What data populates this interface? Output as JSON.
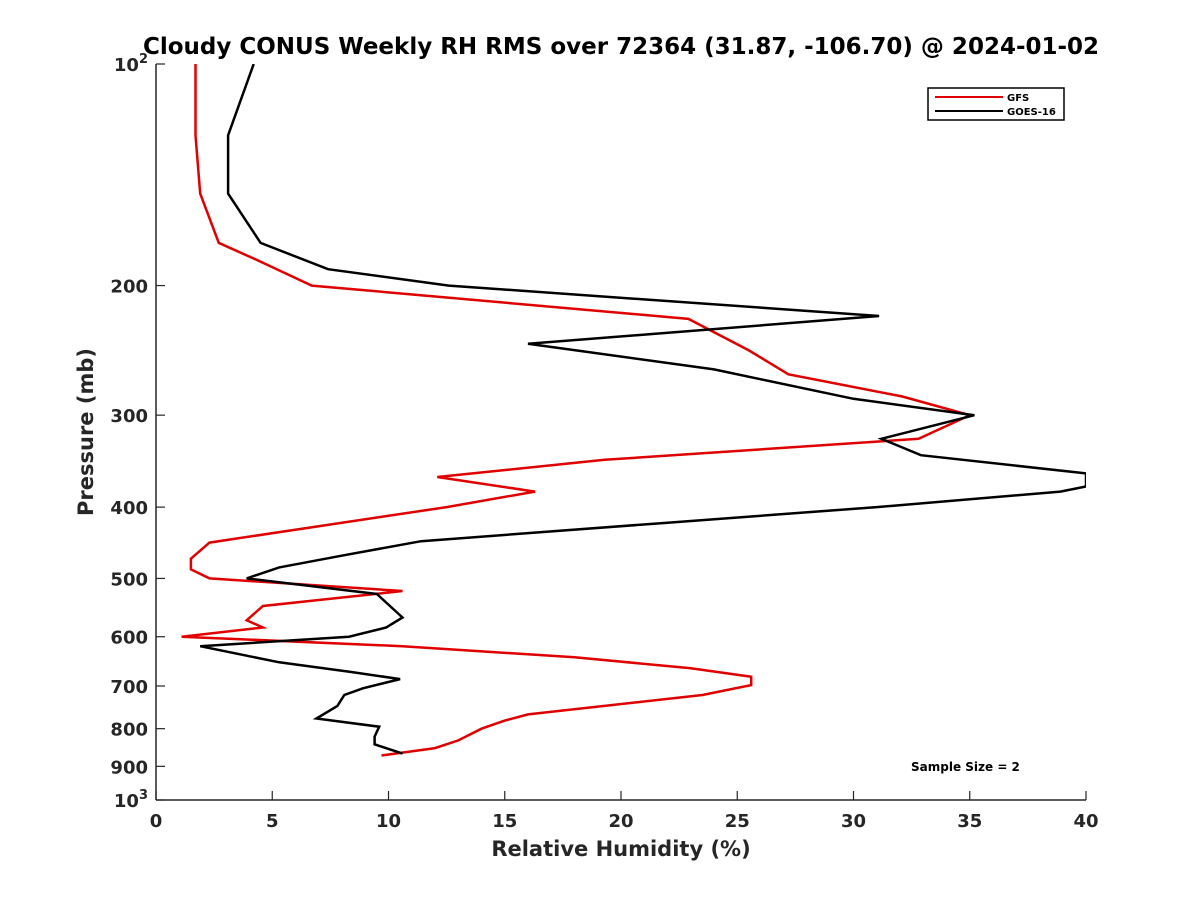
{
  "chart_data": {
    "type": "line",
    "title": "Cloudy CONUS Weekly RH RMS over 72364 (31.87, -106.70) @ 2024-01-02",
    "xlabel": "Relative Humidity (%)",
    "ylabel": "Pressure (mb)",
    "xlim": [
      0,
      40
    ],
    "ylim": [
      100,
      1000
    ],
    "y_scale": "log",
    "y_reversed": true,
    "x_ticks": [
      0,
      5,
      10,
      15,
      20,
      25,
      30,
      35,
      40
    ],
    "x_tick_labels": [
      "0",
      "5",
      "10",
      "15",
      "20",
      "25",
      "30",
      "35",
      "40"
    ],
    "y_ticks": [
      100,
      200,
      300,
      400,
      500,
      600,
      700,
      800,
      900,
      1000
    ],
    "y_tick_labels": [
      "10²",
      "200",
      "300",
      "400",
      "500",
      "600",
      "700",
      "800",
      "900",
      "10³"
    ],
    "grid": false,
    "legend_position": "top-right",
    "annotation": "Sample Size = 2",
    "series": [
      {
        "name": "GFS",
        "color": "#e00000",
        "points": [
          [
            1.7,
            100
          ],
          [
            1.7,
            125
          ],
          [
            1.9,
            150
          ],
          [
            2.7,
            175
          ],
          [
            4.4,
            185
          ],
          [
            6.7,
            200
          ],
          [
            22.9,
            222
          ],
          [
            25.5,
            245
          ],
          [
            27.2,
            264
          ],
          [
            32.1,
            283
          ],
          [
            35.0,
            300
          ],
          [
            32.8,
            323
          ],
          [
            19.3,
            345
          ],
          [
            12.1,
            364
          ],
          [
            16.3,
            381
          ],
          [
            12.5,
            400
          ],
          [
            2.3,
            447
          ],
          [
            1.5,
            470
          ],
          [
            1.5,
            486
          ],
          [
            2.3,
            500
          ],
          [
            10.6,
            520
          ],
          [
            4.6,
            545
          ],
          [
            3.9,
            570
          ],
          [
            4.6,
            583
          ],
          [
            1.1,
            600
          ],
          [
            10.6,
            618
          ],
          [
            18.0,
            640
          ],
          [
            23.0,
            662
          ],
          [
            25.6,
            680
          ],
          [
            25.6,
            698
          ],
          [
            23.5,
            720
          ],
          [
            16.0,
            765
          ],
          [
            15.0,
            780
          ],
          [
            14.0,
            800
          ],
          [
            13.0,
            830
          ],
          [
            12.0,
            850
          ],
          [
            9.7,
            870
          ]
        ]
      },
      {
        "name": "GOES-16",
        "color": "#000000",
        "points": [
          [
            4.2,
            100
          ],
          [
            3.1,
            125
          ],
          [
            3.1,
            150
          ],
          [
            4.5,
            175
          ],
          [
            7.4,
            190
          ],
          [
            12.6,
            200
          ],
          [
            31.1,
            220
          ],
          [
            16.0,
            240
          ],
          [
            24.0,
            260
          ],
          [
            30.0,
            285
          ],
          [
            35.2,
            300
          ],
          [
            31.2,
            323
          ],
          [
            32.9,
            340
          ],
          [
            40.0,
            360
          ],
          [
            40.0,
            375
          ],
          [
            38.9,
            381
          ],
          [
            31.0,
            400
          ],
          [
            22.0,
            420
          ],
          [
            11.4,
            445
          ],
          [
            8.1,
            465
          ],
          [
            5.3,
            483
          ],
          [
            3.9,
            500
          ],
          [
            9.5,
            525
          ],
          [
            10.6,
            565
          ],
          [
            9.9,
            583
          ],
          [
            8.3,
            600
          ],
          [
            1.9,
            618
          ],
          [
            5.3,
            650
          ],
          [
            8.4,
            670
          ],
          [
            10.5,
            685
          ],
          [
            8.9,
            705
          ],
          [
            8.1,
            720
          ],
          [
            7.8,
            745
          ],
          [
            6.9,
            775
          ],
          [
            9.6,
            795
          ],
          [
            9.4,
            820
          ],
          [
            9.4,
            840
          ],
          [
            10.6,
            865
          ]
        ]
      }
    ]
  }
}
